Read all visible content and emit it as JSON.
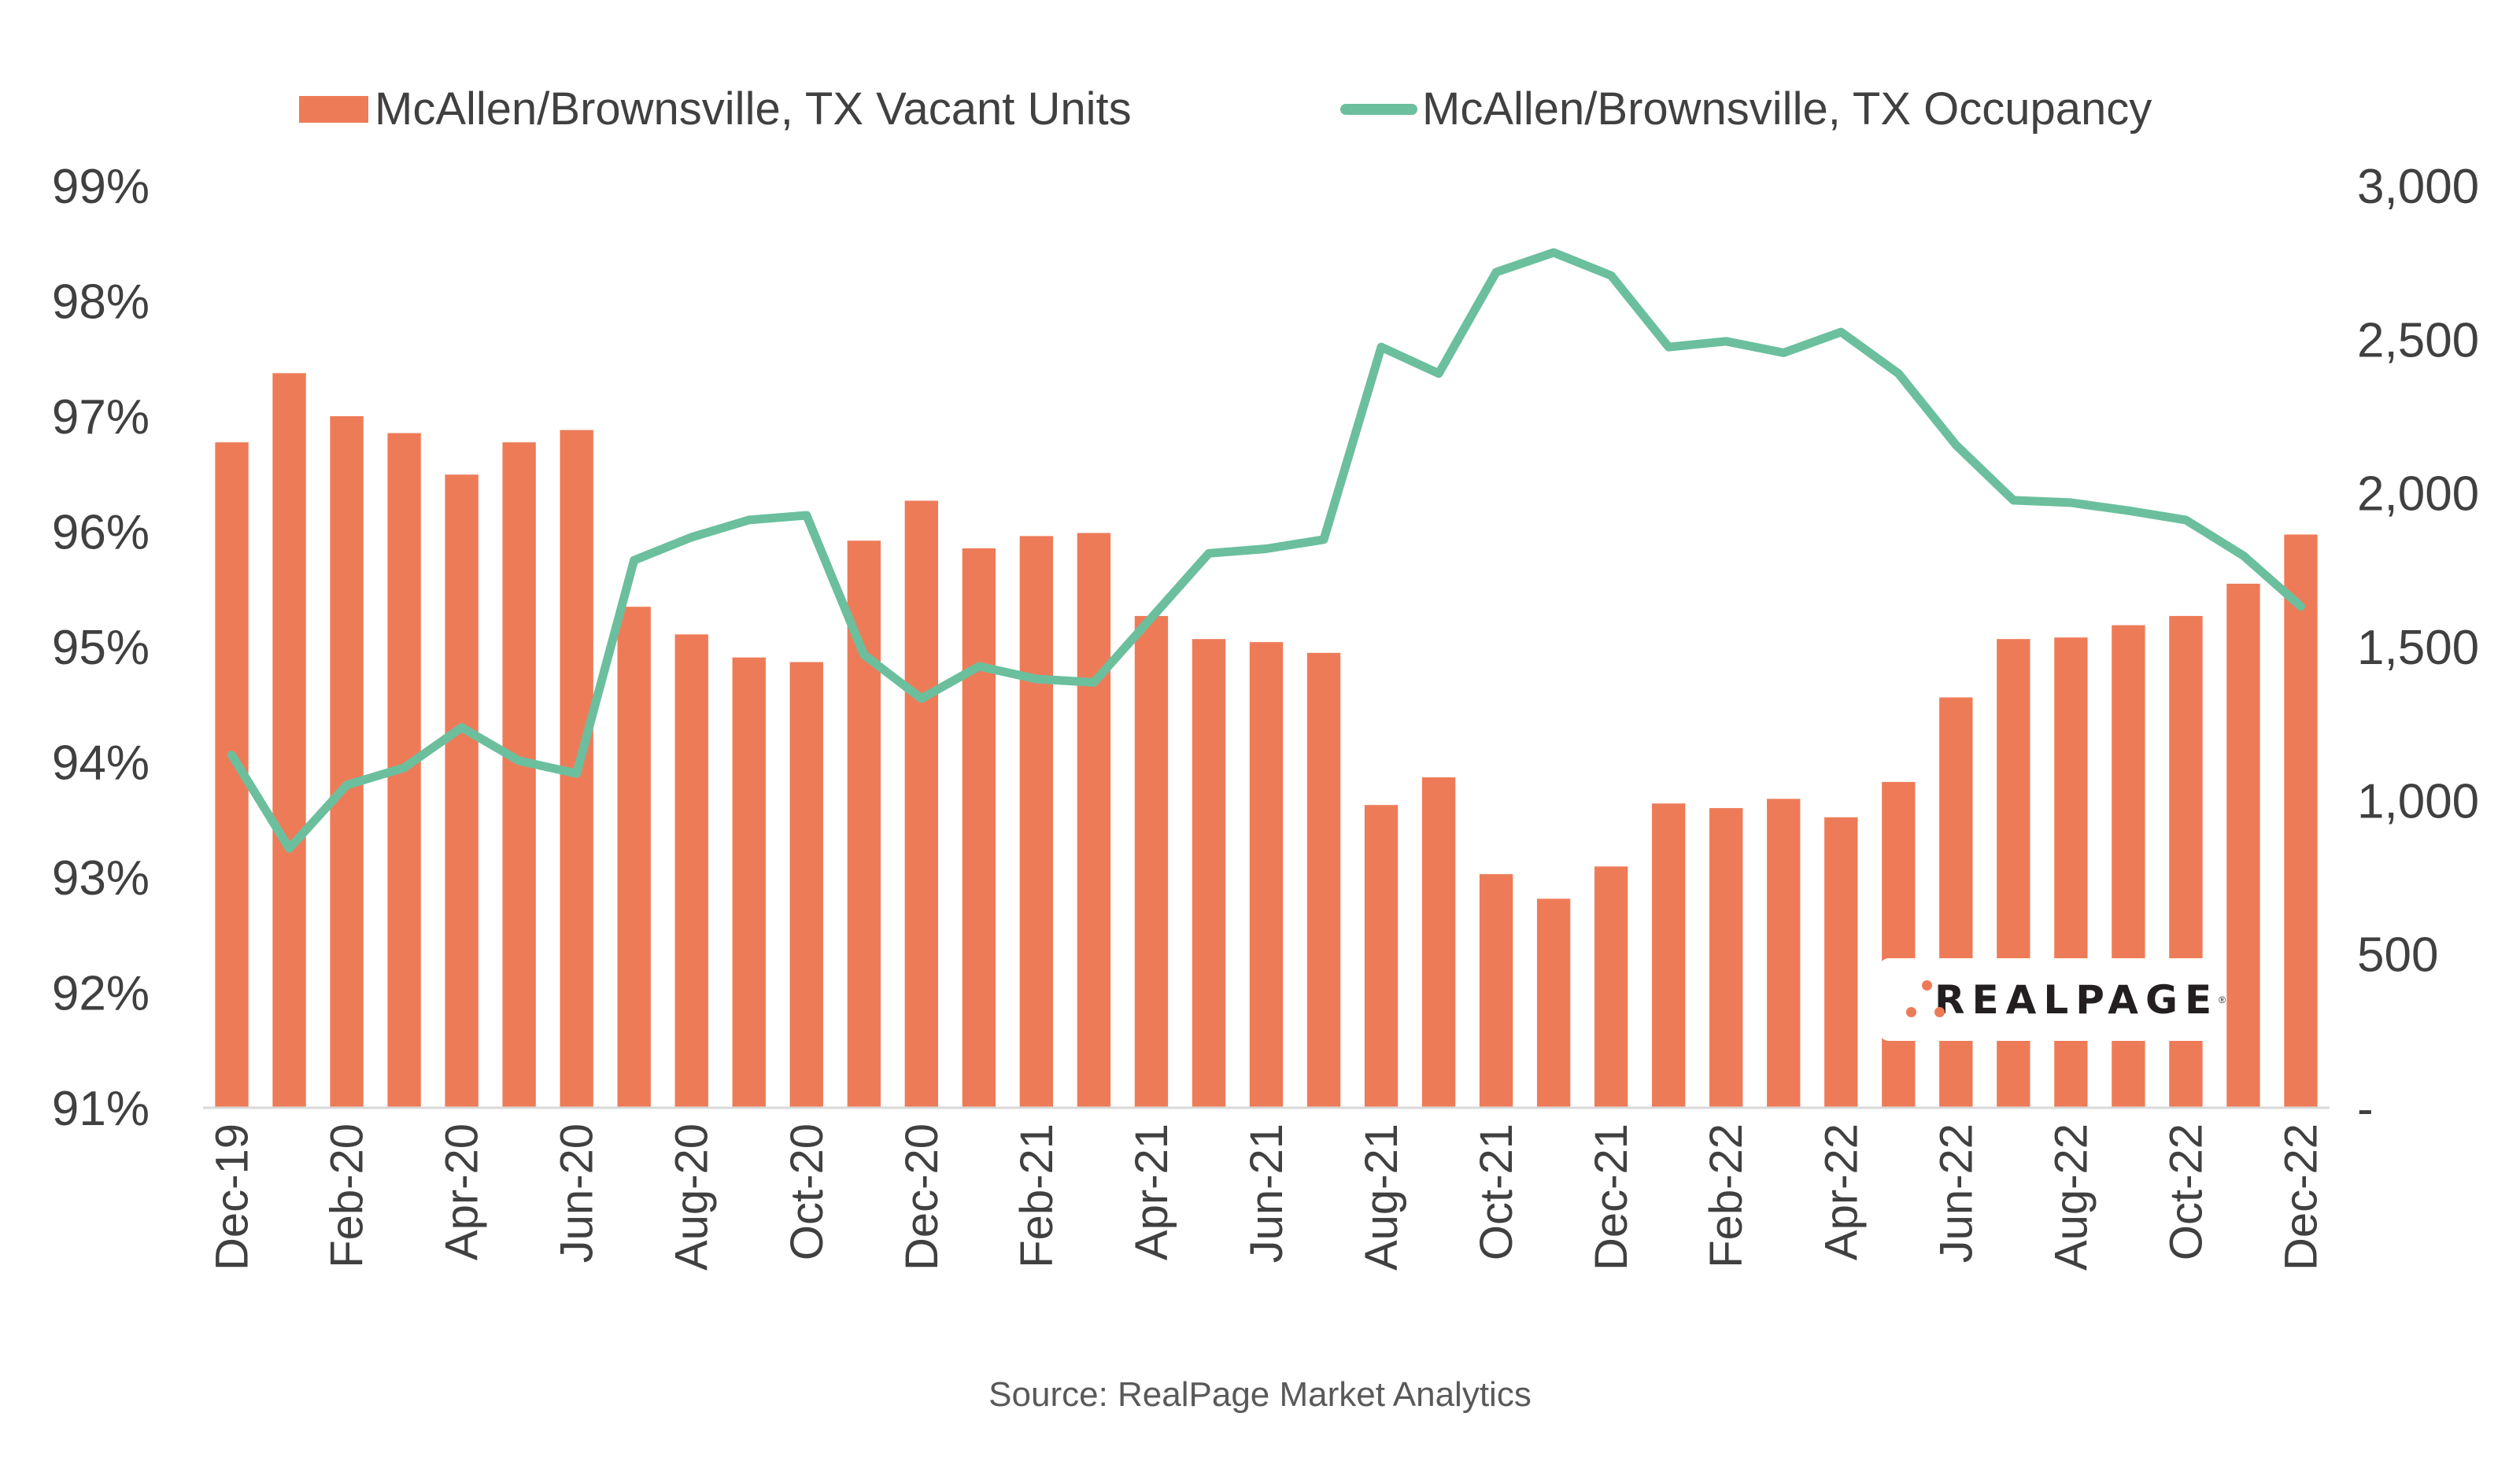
{
  "chart_data": {
    "type": "bar",
    "categories": [
      "Dec-19",
      "Jan-20",
      "Feb-20",
      "Mar-20",
      "Apr-20",
      "May-20",
      "Jun-20",
      "Jul-20",
      "Aug-20",
      "Sep-20",
      "Oct-20",
      "Nov-20",
      "Dec-20",
      "Jan-21",
      "Feb-21",
      "Mar-21",
      "Apr-21",
      "May-21",
      "Jun-21",
      "Jul-21",
      "Aug-21",
      "Sep-21",
      "Oct-21",
      "Nov-21",
      "Dec-21",
      "Jan-22",
      "Feb-22",
      "Mar-22",
      "Apr-22",
      "May-22",
      "Jun-22",
      "Jul-22",
      "Aug-22",
      "Sep-22",
      "Oct-22",
      "Nov-22",
      "Dec-22"
    ],
    "x_tick_labels": [
      "Dec-19",
      "Feb-20",
      "Apr-20",
      "Jun-20",
      "Aug-20",
      "Oct-20",
      "Dec-20",
      "Feb-21",
      "Apr-21",
      "Jun-21",
      "Aug-21",
      "Oct-21",
      "Dec-21",
      "Feb-22",
      "Apr-22",
      "Jun-22",
      "Aug-22",
      "Oct-22",
      "Dec-22"
    ],
    "series": [
      {
        "name": "McAllen/Brownsville, TX Vacant Units",
        "type": "bar",
        "axis": "right",
        "color": "#ee7b58",
        "values": [
          2165,
          2390,
          2250,
          2195,
          2060,
          2165,
          2205,
          1630,
          1540,
          1465,
          1450,
          1845,
          1975,
          1820,
          1860,
          1870,
          1600,
          1525,
          1515,
          1480,
          985,
          1075,
          760,
          680,
          785,
          990,
          975,
          1005,
          945,
          1060,
          1335,
          1525,
          1530,
          1570,
          1600,
          1705,
          1865
        ]
      },
      {
        "name": "McAllen/Brownsville, TX Occupancy",
        "type": "line",
        "axis": "left",
        "color": "#6bbf9d",
        "values": [
          94.06,
          93.25,
          93.8,
          93.95,
          94.3,
          94.01,
          93.9,
          95.75,
          95.95,
          96.1,
          96.14,
          94.93,
          94.55,
          94.83,
          94.72,
          94.69,
          95.25,
          95.81,
          95.85,
          95.93,
          97.6,
          97.37,
          98.25,
          98.42,
          98.22,
          97.6,
          97.65,
          97.55,
          97.73,
          97.37,
          96.75,
          96.27,
          96.25,
          96.18,
          96.1,
          95.79,
          95.35
        ]
      }
    ],
    "y_left": {
      "ticks": [
        "91%",
        "92%",
        "93%",
        "94%",
        "95%",
        "96%",
        "97%",
        "98%",
        "99%"
      ],
      "min": 91,
      "max": 99
    },
    "y_right": {
      "ticks": [
        "-",
        "500",
        "1,000",
        "1,500",
        "2,000",
        "2,500",
        "3,000"
      ],
      "min": 0,
      "max": 3000
    },
    "legend_position": "top",
    "grid": false
  },
  "source": "Source: RealPage Market Analytics",
  "logo": {
    "text": "REALPAGE",
    "mark": "®"
  }
}
